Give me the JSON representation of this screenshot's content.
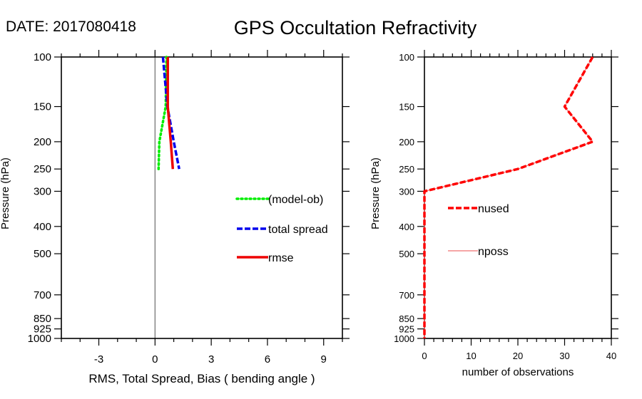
{
  "header": {
    "date_label": "DATE: 2017080418",
    "title": "GPS Occultation Refractivity"
  },
  "chart_data": [
    {
      "type": "line",
      "name": "rms-spread-bias",
      "xlabel": "RMS, Total Spread, Bias ( bending angle )",
      "ylabel": "Pressure (hPa)",
      "xlim": [
        -5,
        10
      ],
      "ylim": [
        1000,
        100
      ],
      "yscale": "log",
      "x_major_ticks": [
        -3,
        0,
        3,
        6,
        9
      ],
      "x_minor_step": 1,
      "y_ticks": [
        100,
        150,
        200,
        250,
        300,
        400,
        500,
        700,
        850,
        925,
        1000
      ],
      "zero_line": true,
      "legend_position": "center-right",
      "series": [
        {
          "name": "(model-ob)",
          "style": "dotted",
          "color": "#00ee00",
          "pressure": [
            100,
            150,
            200,
            250
          ],
          "values": [
            0.61,
            0.57,
            0.23,
            0.19
          ]
        },
        {
          "name": "total spread",
          "style": "dashed",
          "color": "#0000ee",
          "pressure": [
            100,
            150,
            200,
            250
          ],
          "values": [
            0.42,
            0.66,
            1.0,
            1.29
          ]
        },
        {
          "name": "rmse",
          "style": "solid",
          "color": "#ee0000",
          "pressure": [
            100,
            150,
            200,
            250
          ],
          "values": [
            0.68,
            0.68,
            0.84,
            0.95
          ]
        }
      ]
    },
    {
      "type": "line",
      "name": "observation-counts",
      "xlabel": "number of observations",
      "ylabel": "Pressure (hPa)",
      "xlim": [
        0,
        40
      ],
      "ylim": [
        1000,
        100
      ],
      "yscale": "log",
      "x_major_ticks": [
        0,
        10,
        20,
        30,
        40
      ],
      "x_minor_step": 2,
      "y_ticks": [
        100,
        150,
        200,
        250,
        300,
        400,
        500,
        700,
        850,
        925,
        1000
      ],
      "legend_position": "center-left",
      "series": [
        {
          "name": "nused",
          "style": "dashed",
          "color": "#ff0000",
          "pressure": [
            100,
            150,
            200,
            250,
            300,
            400,
            500,
            700,
            850,
            925,
            1000
          ],
          "values": [
            36,
            30,
            36,
            20,
            0,
            0,
            0,
            0,
            0,
            0,
            0
          ]
        },
        {
          "name": "nposs",
          "style": "solid-thin",
          "color": "#f07070",
          "pressure": [
            100,
            150,
            200,
            250,
            300,
            400,
            500,
            700,
            850,
            925,
            1000
          ],
          "values": [
            36,
            30,
            36,
            20,
            0,
            0,
            0,
            0,
            0,
            0,
            0
          ]
        }
      ]
    }
  ]
}
